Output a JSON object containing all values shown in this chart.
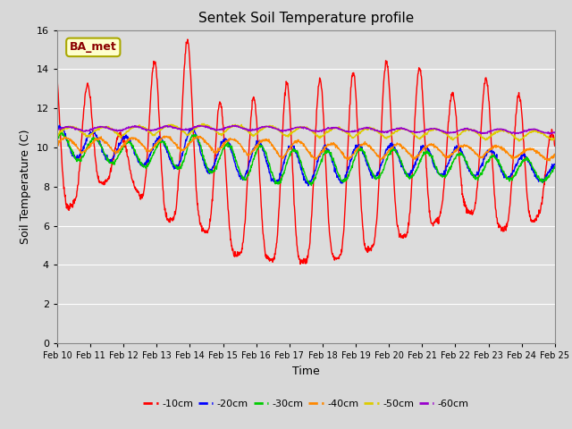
{
  "title": "Sentek Soil Temperature profile",
  "xlabel": "Time",
  "ylabel": "Soil Temperature (C)",
  "annotation": "BA_met",
  "ylim": [
    0,
    16
  ],
  "yticks": [
    0,
    2,
    4,
    6,
    8,
    10,
    12,
    14,
    16
  ],
  "xtick_labels": [
    "Feb 10",
    "Feb 11",
    "Feb 12",
    "Feb 13",
    "Feb 14",
    "Feb 15",
    "Feb 16",
    "Feb 17",
    "Feb 18",
    "Feb 19",
    "Feb 20",
    "Feb 21",
    "Feb 22",
    "Feb 23",
    "Feb 24",
    "Feb 25"
  ],
  "bg_color": "#dcdcdc",
  "grid_color": "#ffffff",
  "legend": [
    "-10cm",
    "-20cm",
    "-30cm",
    "-40cm",
    "-50cm",
    "-60cm"
  ],
  "colors": [
    "#ff0000",
    "#0000ff",
    "#00cc00",
    "#ff8800",
    "#ddcc00",
    "#9900cc"
  ],
  "linewidth": 1.0,
  "n_points": 1440
}
